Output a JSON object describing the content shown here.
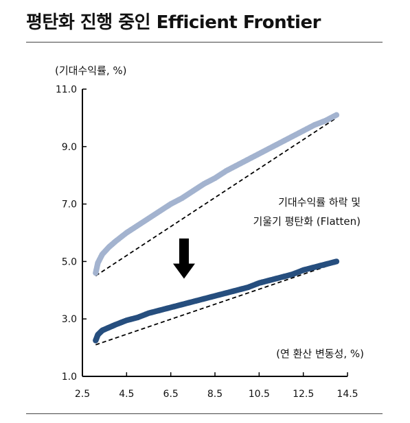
{
  "title": "평탄화 진행 중인 Efficient Frontier",
  "chart_data": {
    "type": "scatter",
    "title": "평탄화 진행 중인 Efficient Frontier",
    "ylabel": "(기대수익률, %)",
    "xlabel": "(연 환산 변동성, %)",
    "xlim": [
      2.5,
      14.5
    ],
    "ylim": [
      1.0,
      11.0
    ],
    "x_ticks": [
      "2.5",
      "4.5",
      "6.5",
      "8.5",
      "10.5",
      "12.5",
      "14.5"
    ],
    "y_ticks": [
      "1.0",
      "3.0",
      "5.0",
      "7.0",
      "9.0",
      "11.0"
    ],
    "grid": false,
    "annotation": [
      "기대수익률 하락 및",
      "기울기 평탄화 (Flatten)"
    ],
    "arrow": "down",
    "colors": {
      "upper": "#a3b3cf",
      "lower": "#264e7e",
      "line": "#000000"
    },
    "series": [
      {
        "x": [
          3.1,
          3.2,
          3.4,
          3.7,
          4.0,
          4.5,
          5.0,
          5.5,
          6.0,
          6.5,
          7.0,
          7.5,
          8.0,
          8.5,
          9.0,
          9.5,
          10.0,
          10.5,
          11.0,
          11.5,
          12.0,
          12.5,
          13.0,
          13.5,
          14.0
        ],
        "y": [
          4.6,
          4.95,
          5.25,
          5.5,
          5.7,
          6.0,
          6.25,
          6.5,
          6.75,
          7.0,
          7.2,
          7.45,
          7.7,
          7.9,
          8.15,
          8.35,
          8.55,
          8.75,
          8.95,
          9.15,
          9.35,
          9.55,
          9.75,
          9.9,
          10.1
        ]
      },
      {
        "x": [
          3.1,
          3.2,
          3.4,
          3.7,
          4.0,
          4.5,
          5.0,
          5.5,
          6.0,
          6.5,
          7.0,
          7.5,
          8.0,
          8.5,
          9.0,
          9.5,
          10.0,
          10.5,
          11.0,
          11.5,
          12.0,
          12.5,
          13.0,
          13.5,
          14.0
        ],
        "y": [
          2.25,
          2.45,
          2.6,
          2.7,
          2.8,
          2.95,
          3.05,
          3.2,
          3.3,
          3.4,
          3.5,
          3.6,
          3.7,
          3.8,
          3.9,
          4.0,
          4.1,
          4.25,
          4.35,
          4.45,
          4.55,
          4.7,
          4.8,
          4.9,
          5.0
        ]
      }
    ],
    "reference_lines": [
      {
        "x": [
          3.1,
          14.0
        ],
        "y": [
          4.5,
          10.0
        ]
      },
      {
        "x": [
          3.1,
          14.0
        ],
        "y": [
          2.1,
          4.95
        ]
      }
    ],
    "arrow_pos": {
      "x": 7.1,
      "y_from": 5.8,
      "y_to": 4.4
    }
  }
}
